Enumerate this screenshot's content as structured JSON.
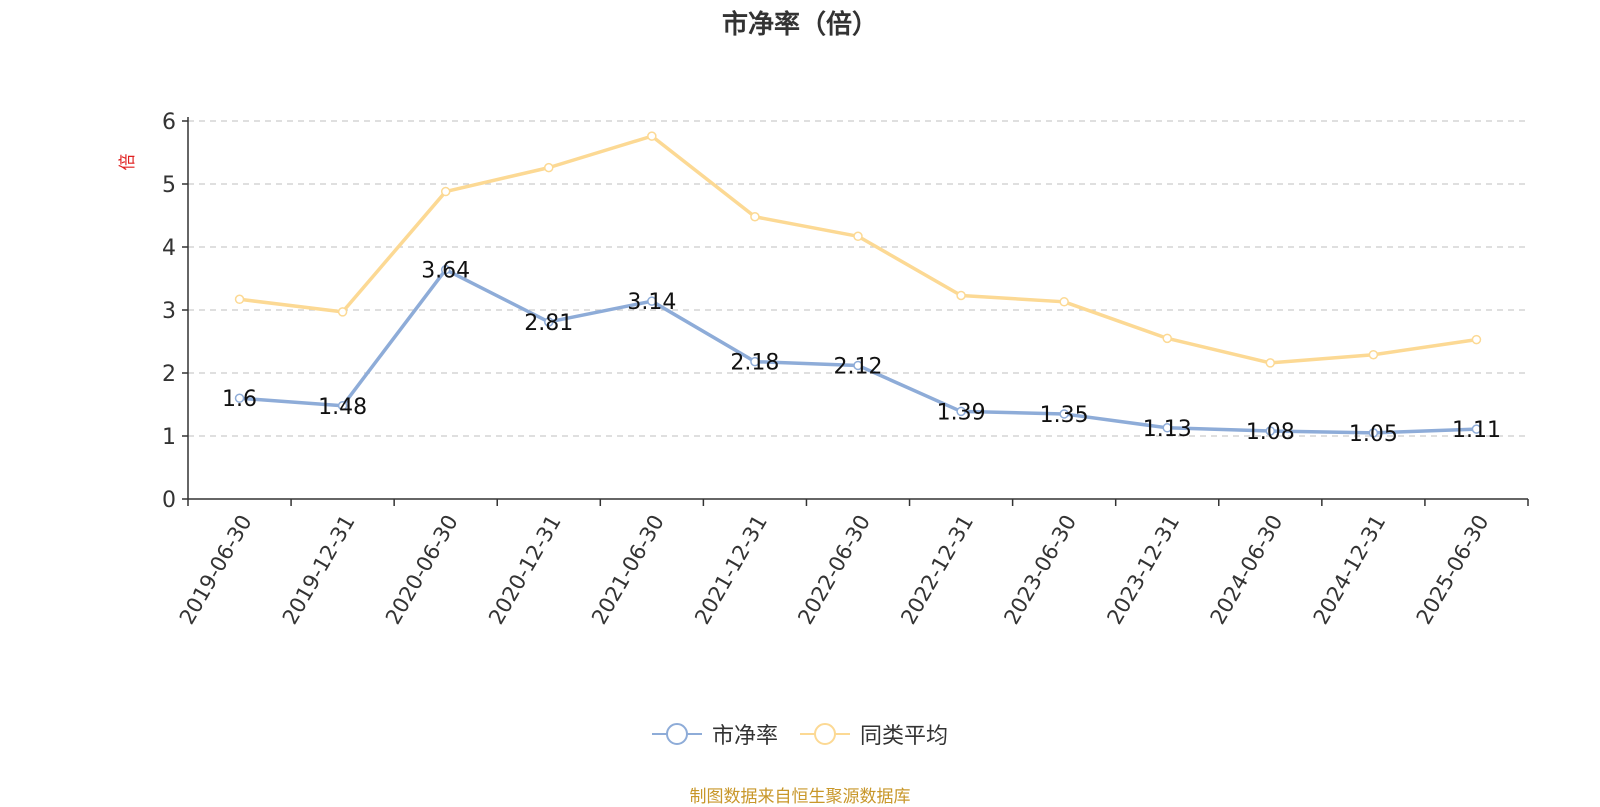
{
  "chart_data": {
    "type": "line",
    "title": "市净率（倍）",
    "ylabel": "倍",
    "ylim": [
      0,
      6
    ],
    "y_ticks": [
      0,
      1,
      2,
      3,
      4,
      5,
      6
    ],
    "grid": true,
    "legend_position": "bottom-center",
    "categories": [
      "2019-06-30",
      "2019-12-31",
      "2020-06-30",
      "2020-12-31",
      "2021-06-30",
      "2021-12-31",
      "2022-06-30",
      "2022-12-31",
      "2023-06-30",
      "2023-12-31",
      "2024-06-30",
      "2024-12-31",
      "2025-06-30"
    ],
    "series": [
      {
        "name": "市净率",
        "color": "#8eacd8",
        "values": [
          1.6,
          1.48,
          3.64,
          2.81,
          3.14,
          2.18,
          2.12,
          1.39,
          1.35,
          1.13,
          1.08,
          1.05,
          1.11
        ],
        "labels": [
          "1.6",
          "1.48",
          "3.64",
          "2.81",
          "3.14",
          "2.18",
          "2.12",
          "1.39",
          "1.35",
          "1.13",
          "1.08",
          "1.05",
          "1.11"
        ]
      },
      {
        "name": "同类平均",
        "color": "#fcd994",
        "values": [
          3.17,
          2.97,
          4.88,
          5.26,
          5.76,
          4.48,
          4.17,
          3.23,
          3.13,
          2.55,
          2.16,
          2.29,
          2.53
        ]
      }
    ]
  },
  "source_note": "制图数据来自恒生聚源数据库"
}
